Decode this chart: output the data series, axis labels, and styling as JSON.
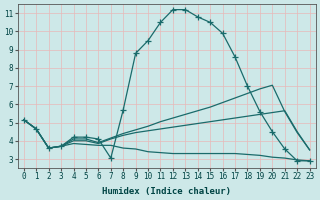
{
  "title": "",
  "xlabel": "Humidex (Indice chaleur)",
  "ylabel": "",
  "background_color": "#cde8e8",
  "grid_color": "#e8b8b8",
  "line_color": "#1a6b6b",
  "xlim": [
    -0.5,
    23.5
  ],
  "ylim": [
    2.5,
    11.5
  ],
  "xticks": [
    0,
    1,
    2,
    3,
    4,
    5,
    6,
    7,
    8,
    9,
    10,
    11,
    12,
    13,
    14,
    15,
    16,
    17,
    18,
    19,
    20,
    21,
    22,
    23
  ],
  "yticks": [
    3,
    4,
    5,
    6,
    7,
    8,
    9,
    10,
    11
  ],
  "line1_x": [
    0,
    1,
    2,
    3,
    4,
    5,
    6,
    7,
    8,
    9,
    10,
    11,
    12,
    13,
    14,
    15,
    16,
    17,
    18,
    19,
    20,
    21,
    22,
    23
  ],
  "line1_y": [
    5.15,
    4.65,
    3.6,
    3.7,
    4.2,
    4.2,
    4.1,
    3.05,
    5.7,
    8.8,
    9.5,
    10.5,
    11.2,
    11.2,
    10.8,
    10.5,
    9.9,
    8.6,
    7.0,
    5.6,
    4.5,
    3.55,
    2.9,
    2.9
  ],
  "line2_x": [
    0,
    1,
    2,
    3,
    4,
    5,
    6,
    7,
    8,
    9,
    10,
    11,
    12,
    13,
    14,
    15,
    16,
    17,
    18,
    19,
    20,
    21,
    22,
    23
  ],
  "line2_y": [
    5.15,
    4.65,
    3.6,
    3.7,
    4.1,
    4.1,
    3.9,
    4.15,
    4.4,
    4.6,
    4.8,
    5.05,
    5.25,
    5.45,
    5.65,
    5.85,
    6.1,
    6.35,
    6.6,
    6.85,
    7.05,
    5.6,
    4.45,
    3.5
  ],
  "line3_x": [
    0,
    1,
    2,
    3,
    4,
    5,
    6,
    7,
    8,
    9,
    10,
    11,
    12,
    13,
    14,
    15,
    16,
    17,
    18,
    19,
    20,
    21,
    22,
    23
  ],
  "line3_y": [
    5.15,
    4.65,
    3.6,
    3.7,
    4.0,
    4.0,
    3.85,
    4.1,
    4.3,
    4.45,
    4.55,
    4.65,
    4.75,
    4.85,
    4.95,
    5.05,
    5.15,
    5.25,
    5.35,
    5.45,
    5.55,
    5.65,
    4.5,
    3.5
  ],
  "line4_x": [
    0,
    1,
    2,
    3,
    4,
    5,
    6,
    7,
    8,
    9,
    10,
    11,
    12,
    13,
    14,
    15,
    16,
    17,
    18,
    19,
    20,
    21,
    22,
    23
  ],
  "line4_y": [
    5.15,
    4.65,
    3.6,
    3.7,
    3.85,
    3.8,
    3.75,
    3.75,
    3.6,
    3.55,
    3.4,
    3.35,
    3.3,
    3.3,
    3.3,
    3.3,
    3.3,
    3.3,
    3.25,
    3.2,
    3.1,
    3.05,
    2.95,
    2.9
  ]
}
